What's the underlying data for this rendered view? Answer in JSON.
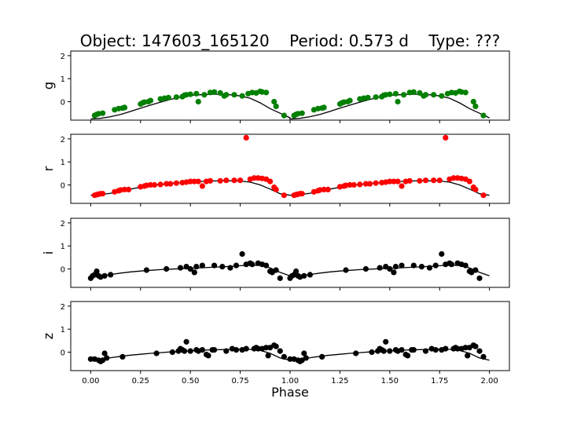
{
  "title": "Object: 147603_165120    Period: 0.573 d    Type: ???",
  "xlabel": "Phase",
  "chart_data": {
    "type": "scatter",
    "xlim": [
      -0.1,
      2.1
    ],
    "ylim": [
      -0.8,
      2.2
    ],
    "x_ticks": [
      "0.00",
      "0.25",
      "0.50",
      "0.75",
      "1.00",
      "1.25",
      "1.50",
      "1.75",
      "2.00"
    ],
    "y_ticks": [
      "0",
      "1",
      "2"
    ],
    "panels": [
      {
        "ylabel": "g",
        "color": "#008000",
        "points_one_cycle": [
          [
            0.02,
            -0.6
          ],
          [
            0.03,
            -0.55
          ],
          [
            0.04,
            -0.52
          ],
          [
            0.06,
            -0.5
          ],
          [
            0.12,
            -0.35
          ],
          [
            0.14,
            -0.3
          ],
          [
            0.16,
            -0.28
          ],
          [
            0.17,
            -0.25
          ],
          [
            0.25,
            -0.1
          ],
          [
            0.26,
            -0.05
          ],
          [
            0.27,
            -0.02
          ],
          [
            0.29,
            0.0
          ],
          [
            0.3,
            0.05
          ],
          [
            0.35,
            0.12
          ],
          [
            0.37,
            0.15
          ],
          [
            0.39,
            0.18
          ],
          [
            0.43,
            0.2
          ],
          [
            0.46,
            0.22
          ],
          [
            0.47,
            0.28
          ],
          [
            0.48,
            0.3
          ],
          [
            0.5,
            0.32
          ],
          [
            0.53,
            0.35
          ],
          [
            0.54,
            0.0
          ],
          [
            0.57,
            0.3
          ],
          [
            0.6,
            0.4
          ],
          [
            0.62,
            0.42
          ],
          [
            0.65,
            0.38
          ],
          [
            0.67,
            0.25
          ],
          [
            0.68,
            0.3
          ],
          [
            0.72,
            0.3
          ],
          [
            0.76,
            0.25
          ],
          [
            0.79,
            0.35
          ],
          [
            0.81,
            0.4
          ],
          [
            0.83,
            0.38
          ],
          [
            0.85,
            0.45
          ],
          [
            0.86,
            0.42
          ],
          [
            0.88,
            0.4
          ],
          [
            0.92,
            0.0
          ],
          [
            0.93,
            -0.2
          ],
          [
            0.97,
            -0.6
          ]
        ],
        "model_x": [
          0.0,
          0.05,
          0.1,
          0.15,
          0.2,
          0.25,
          0.3,
          0.35,
          0.4,
          0.45,
          0.5,
          0.55,
          0.6,
          0.65,
          0.7,
          0.75,
          0.8,
          0.85,
          0.9,
          0.95,
          1.0
        ],
        "model_y": [
          -0.75,
          -0.72,
          -0.65,
          -0.55,
          -0.42,
          -0.28,
          -0.15,
          -0.02,
          0.1,
          0.2,
          0.28,
          0.3,
          0.32,
          0.32,
          0.3,
          0.25,
          0.15,
          -0.05,
          -0.3,
          -0.5,
          -0.7
        ]
      },
      {
        "ylabel": "r",
        "color": "#ff0000",
        "points_one_cycle": [
          [
            0.02,
            -0.45
          ],
          [
            0.03,
            -0.42
          ],
          [
            0.04,
            -0.4
          ],
          [
            0.05,
            -0.38
          ],
          [
            0.06,
            -0.38
          ],
          [
            0.12,
            -0.3
          ],
          [
            0.14,
            -0.25
          ],
          [
            0.15,
            -0.22
          ],
          [
            0.17,
            -0.2
          ],
          [
            0.19,
            -0.2
          ],
          [
            0.25,
            -0.08
          ],
          [
            0.27,
            -0.05
          ],
          [
            0.28,
            -0.02
          ],
          [
            0.3,
            0.0
          ],
          [
            0.32,
            0.0
          ],
          [
            0.35,
            0.02
          ],
          [
            0.38,
            0.05
          ],
          [
            0.4,
            0.05
          ],
          [
            0.43,
            0.08
          ],
          [
            0.46,
            0.1
          ],
          [
            0.48,
            0.12
          ],
          [
            0.5,
            0.15
          ],
          [
            0.52,
            0.15
          ],
          [
            0.54,
            0.15
          ],
          [
            0.56,
            -0.05
          ],
          [
            0.58,
            0.15
          ],
          [
            0.6,
            0.18
          ],
          [
            0.65,
            0.18
          ],
          [
            0.68,
            0.2
          ],
          [
            0.72,
            0.2
          ],
          [
            0.75,
            0.2
          ],
          [
            0.78,
            2.05
          ],
          [
            0.8,
            0.25
          ],
          [
            0.82,
            0.3
          ],
          [
            0.84,
            0.3
          ],
          [
            0.86,
            0.28
          ],
          [
            0.88,
            0.25
          ],
          [
            0.9,
            0.15
          ],
          [
            0.92,
            -0.1
          ],
          [
            0.93,
            -0.2
          ],
          [
            0.97,
            -0.45
          ]
        ],
        "model_x": [
          0.0,
          0.05,
          0.1,
          0.15,
          0.2,
          0.25,
          0.3,
          0.35,
          0.4,
          0.45,
          0.5,
          0.55,
          0.6,
          0.65,
          0.7,
          0.75,
          0.8,
          0.85,
          0.9,
          0.95,
          1.0
        ],
        "model_y": [
          -0.45,
          -0.42,
          -0.36,
          -0.28,
          -0.18,
          -0.1,
          -0.04,
          0.02,
          0.07,
          0.1,
          0.13,
          0.15,
          0.17,
          0.18,
          0.18,
          0.17,
          0.12,
          0.0,
          -0.18,
          -0.38,
          -0.45
        ]
      },
      {
        "ylabel": "i",
        "color": "#000000",
        "points_one_cycle": [
          [
            0.0,
            -0.4
          ],
          [
            0.01,
            -0.3
          ],
          [
            0.02,
            -0.25
          ],
          [
            0.03,
            -0.1
          ],
          [
            0.04,
            -0.3
          ],
          [
            0.05,
            -0.35
          ],
          [
            0.07,
            -0.3
          ],
          [
            0.1,
            -0.25
          ],
          [
            0.28,
            -0.05
          ],
          [
            0.38,
            0.0
          ],
          [
            0.45,
            0.05
          ],
          [
            0.48,
            0.1
          ],
          [
            0.5,
            0.0
          ],
          [
            0.52,
            -0.15
          ],
          [
            0.53,
            0.1
          ],
          [
            0.56,
            0.15
          ],
          [
            0.62,
            0.15
          ],
          [
            0.66,
            0.1
          ],
          [
            0.7,
            0.05
          ],
          [
            0.73,
            0.15
          ],
          [
            0.76,
            0.65
          ],
          [
            0.78,
            0.2
          ],
          [
            0.8,
            0.25
          ],
          [
            0.81,
            0.2
          ],
          [
            0.84,
            0.25
          ],
          [
            0.86,
            0.2
          ],
          [
            0.88,
            0.15
          ],
          [
            0.9,
            -0.1
          ],
          [
            0.91,
            -0.15
          ],
          [
            0.93,
            -0.05
          ],
          [
            0.95,
            -0.4
          ]
        ],
        "model_x": [
          0.0,
          0.05,
          0.1,
          0.15,
          0.2,
          0.25,
          0.3,
          0.35,
          0.4,
          0.45,
          0.5,
          0.55,
          0.6,
          0.65,
          0.7,
          0.75,
          0.8,
          0.85,
          0.9,
          0.95,
          1.0
        ],
        "model_y": [
          -0.35,
          -0.3,
          -0.24,
          -0.18,
          -0.13,
          -0.09,
          -0.06,
          -0.03,
          -0.01,
          0.01,
          0.03,
          0.05,
          0.07,
          0.09,
          0.11,
          0.14,
          0.16,
          0.15,
          0.05,
          -0.15,
          -0.3
        ]
      },
      {
        "ylabel": "z",
        "color": "#000000",
        "points_one_cycle": [
          [
            0.0,
            -0.3
          ],
          [
            0.02,
            -0.3
          ],
          [
            0.04,
            -0.35
          ],
          [
            0.05,
            -0.4
          ],
          [
            0.06,
            -0.35
          ],
          [
            0.07,
            -0.05
          ],
          [
            0.08,
            -0.25
          ],
          [
            0.16,
            -0.2
          ],
          [
            0.33,
            -0.05
          ],
          [
            0.41,
            0.0
          ],
          [
            0.44,
            0.05
          ],
          [
            0.45,
            0.15
          ],
          [
            0.46,
            0.1
          ],
          [
            0.47,
            0.05
          ],
          [
            0.48,
            0.45
          ],
          [
            0.5,
            0.05
          ],
          [
            0.53,
            0.1
          ],
          [
            0.54,
            0.05
          ],
          [
            0.56,
            0.1
          ],
          [
            0.58,
            -0.1
          ],
          [
            0.59,
            -0.15
          ],
          [
            0.61,
            0.1
          ],
          [
            0.62,
            0.1
          ],
          [
            0.68,
            0.05
          ],
          [
            0.71,
            0.15
          ],
          [
            0.73,
            0.1
          ],
          [
            0.76,
            0.1
          ],
          [
            0.78,
            0.15
          ],
          [
            0.82,
            0.15
          ],
          [
            0.83,
            0.2
          ],
          [
            0.84,
            0.15
          ],
          [
            0.86,
            0.15
          ],
          [
            0.88,
            0.2
          ],
          [
            0.89,
            -0.15
          ],
          [
            0.9,
            0.2
          ],
          [
            0.92,
            0.3
          ],
          [
            0.93,
            0.25
          ],
          [
            0.95,
            0.05
          ],
          [
            0.97,
            -0.2
          ]
        ],
        "model_x": [
          0.0,
          0.05,
          0.1,
          0.15,
          0.2,
          0.25,
          0.3,
          0.35,
          0.4,
          0.45,
          0.5,
          0.55,
          0.6,
          0.65,
          0.7,
          0.75,
          0.8,
          0.85,
          0.9,
          0.95,
          1.0
        ],
        "model_y": [
          -0.35,
          -0.3,
          -0.24,
          -0.18,
          -0.13,
          -0.09,
          -0.05,
          -0.02,
          0.01,
          0.04,
          0.06,
          0.08,
          0.1,
          0.11,
          0.12,
          0.13,
          0.12,
          0.08,
          -0.05,
          -0.25,
          -0.35
        ]
      }
    ]
  }
}
